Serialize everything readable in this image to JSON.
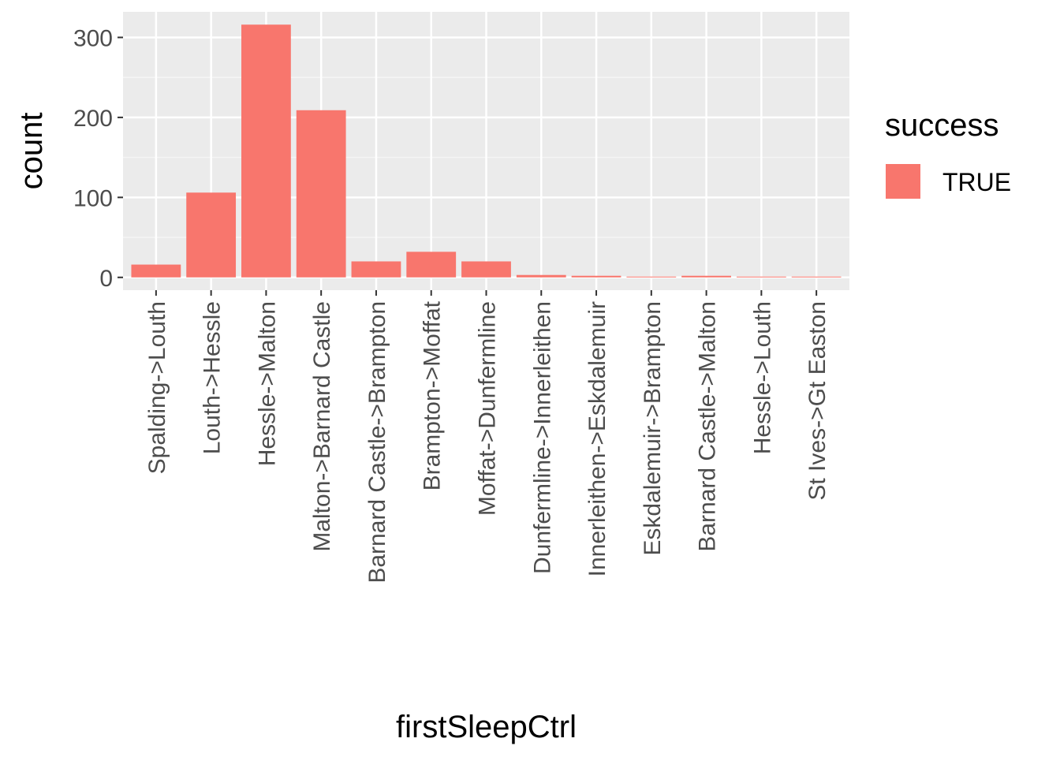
{
  "chart_data": {
    "type": "bar",
    "title": "",
    "xlabel": "firstSleepCtrl",
    "ylabel": "count",
    "categories": [
      "Spalding->Louth",
      "Louth->Hessle",
      "Hessle->Malton",
      "Malton->Barnard Castle",
      "Barnard Castle->Brampton",
      "Brampton->Moffat",
      "Moffat->Dunfermline",
      "Dunfermline->Innerleithen",
      "Innerleithen->Eskdalemuir",
      "Eskdalemuir->Brampton",
      "Barnard Castle->Malton",
      "Hessle->Louth",
      "St Ives->Gt Easton"
    ],
    "series": [
      {
        "name": "TRUE",
        "values": [
          16,
          106,
          316,
          209,
          20,
          32,
          20,
          3,
          2,
          1,
          2,
          1,
          1
        ]
      }
    ],
    "ylim": [
      -16,
      332
    ],
    "yticks": [
      0,
      100,
      200,
      300
    ],
    "grid": true,
    "legend": {
      "title": "success",
      "position": "right"
    },
    "colors": {
      "bar": "#f8766d",
      "panel": "#ebebeb",
      "grid_major": "#ffffff",
      "grid_minor": "#f5f5f5",
      "tick": "#333333"
    }
  }
}
